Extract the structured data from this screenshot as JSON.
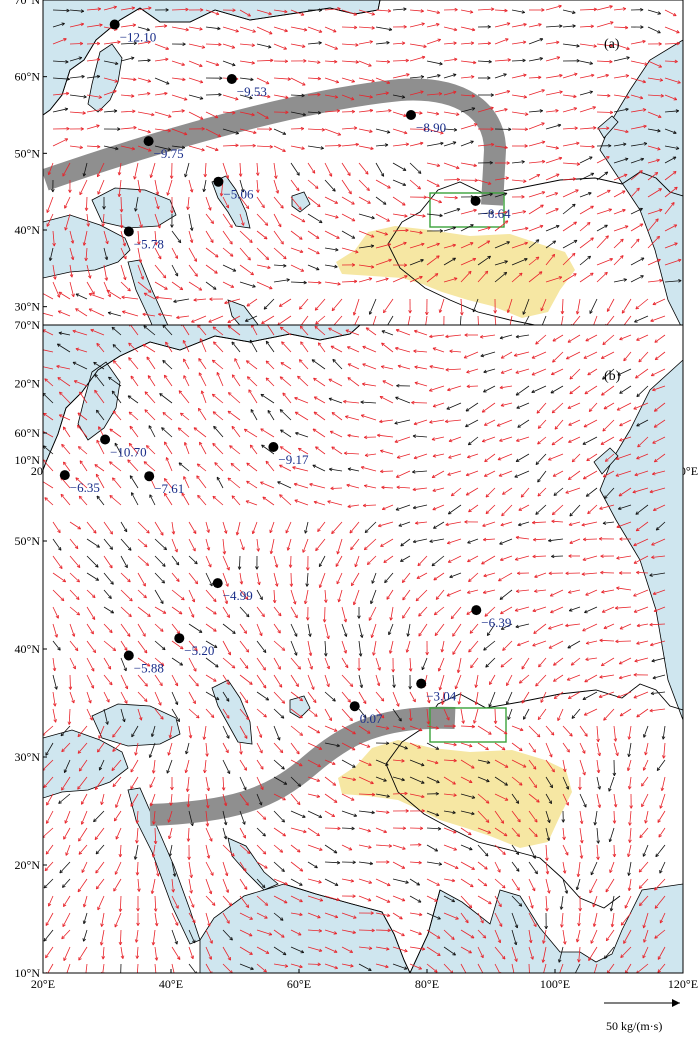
{
  "colors": {
    "ocean": "#cfe6ef",
    "land": "#ffffff",
    "plateau": "#f6e7a3",
    "flow_band": "#8f8f8f",
    "box": "#3aa23a",
    "label": "#1a2e8a",
    "vector_red": "#e8242b",
    "vector_black": "#111111"
  },
  "axes": {
    "lon_ticks": [
      "20°E",
      "40°E",
      "60°E",
      "80°E",
      "100°E",
      "120°E"
    ],
    "lat_ticks": [
      "10°N",
      "20°N",
      "30°N",
      "40°N",
      "50°N",
      "60°N",
      "70°N"
    ],
    "lon_range": [
      20,
      120
    ],
    "lat_range": [
      10,
      70
    ]
  },
  "panels": [
    {
      "label": "(a)",
      "stations": [
        {
          "lon": 31.2,
          "lat": 66.8,
          "value": "−12.10"
        },
        {
          "lon": 49.5,
          "lat": 59.7,
          "value": "−9.53"
        },
        {
          "lon": 36.5,
          "lat": 51.6,
          "value": "−9.75"
        },
        {
          "lon": 77.5,
          "lat": 55.0,
          "value": "−8.90"
        },
        {
          "lon": 47.4,
          "lat": 46.3,
          "value": "−5.06"
        },
        {
          "lon": 33.4,
          "lat": 39.8,
          "value": "−5.78"
        },
        {
          "lon": 87.6,
          "lat": 43.8,
          "value": "−8.64"
        }
      ]
    },
    {
      "label": "(b)",
      "stations": [
        {
          "lon": 29.7,
          "lat": 59.4,
          "value": "−10.70"
        },
        {
          "lon": 23.4,
          "lat": 56.1,
          "value": "−6.35"
        },
        {
          "lon": 36.6,
          "lat": 56.0,
          "value": "−7.61"
        },
        {
          "lon": 56.0,
          "lat": 58.7,
          "value": "−9.17"
        },
        {
          "lon": 47.3,
          "lat": 46.1,
          "value": "−4.99"
        },
        {
          "lon": 41.3,
          "lat": 41.0,
          "value": "−5.20"
        },
        {
          "lon": 33.4,
          "lat": 39.4,
          "value": "−5.88"
        },
        {
          "lon": 87.7,
          "lat": 43.6,
          "value": "−6.39"
        },
        {
          "lon": 79.1,
          "lat": 36.8,
          "value": "−3.04"
        },
        {
          "lon": 68.7,
          "lat": 34.7,
          "value": "0.07"
        }
      ]
    }
  ],
  "scale_vector": {
    "label": "50 kg/(m·s)"
  }
}
